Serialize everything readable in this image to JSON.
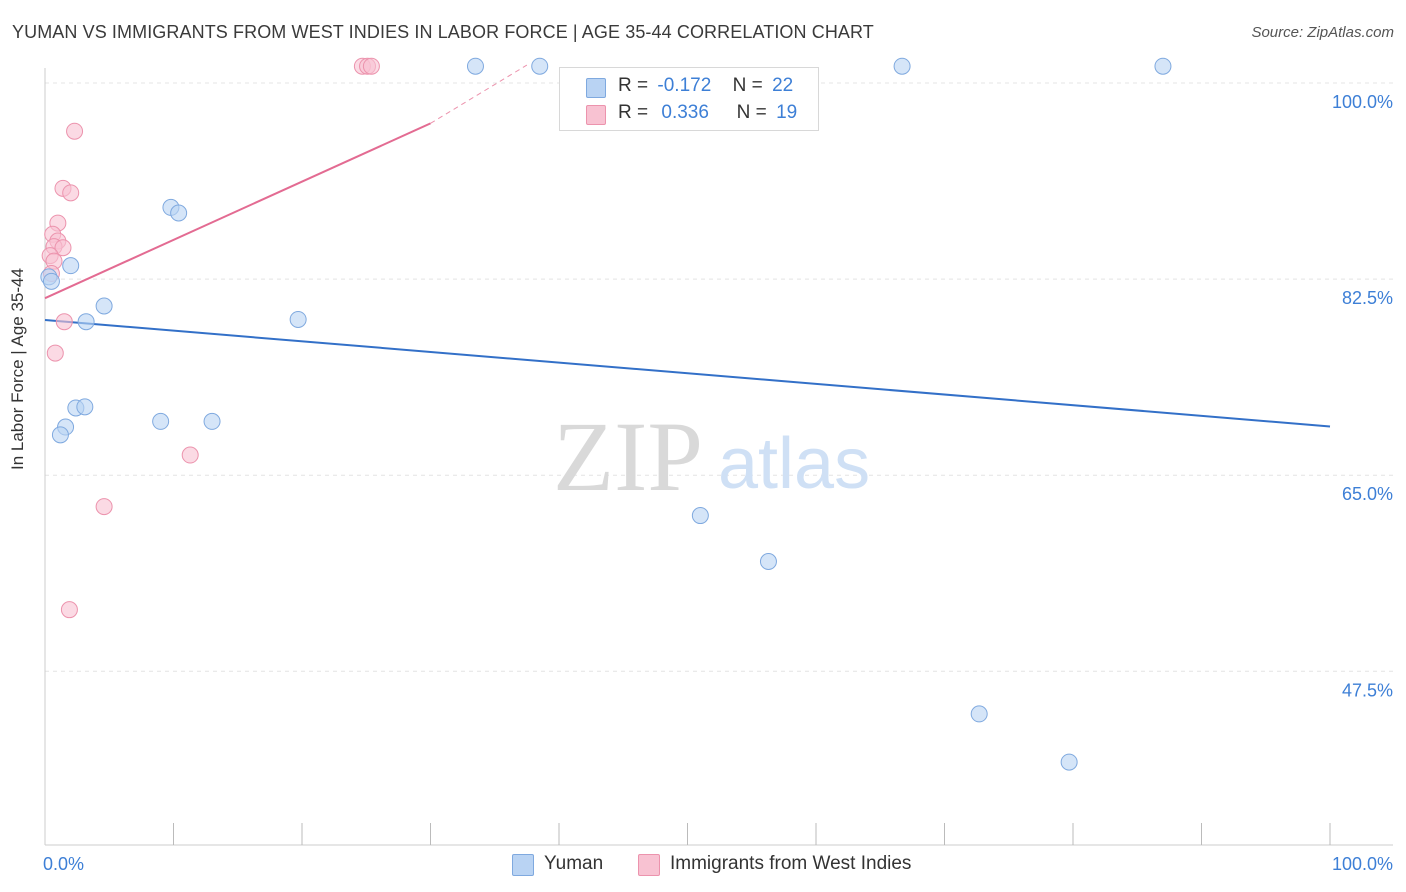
{
  "title": "YUMAN VS IMMIGRANTS FROM WEST INDIES IN LABOR FORCE | AGE 35-44 CORRELATION CHART",
  "source": "Source: ZipAtlas.com",
  "watermark": {
    "zip": "ZIP",
    "atlas": "atlas"
  },
  "legend": {
    "r_label": "R =",
    "n_label": "N =",
    "yuman": {
      "r": "-0.172",
      "n": "22"
    },
    "west_indies": {
      "r": "0.336",
      "n": "19"
    }
  },
  "colors": {
    "yuman_fill": "#b9d3f3",
    "yuman_stroke": "#7fa9df",
    "yuman_line": "#3370c8",
    "wi_fill": "#f8c2d2",
    "wi_stroke": "#ec93ad",
    "wi_line": "#e36b92",
    "axis_text": "#3d7fd6",
    "grid": "#e4e4e4"
  },
  "chart_data": {
    "type": "scatter",
    "title": "YUMAN VS IMMIGRANTS FROM WEST INDIES IN LABOR FORCE | AGE 35-44 CORRELATION CHART",
    "xlabel": "",
    "ylabel": "In Labor Force | Age 35-44",
    "xlim": [
      0,
      100
    ],
    "ylim": [
      32,
      102.5
    ],
    "x_tick_labels": [
      "0.0%",
      "100.0%"
    ],
    "y_ticks": [
      {
        "value": 100.0,
        "label": "100.0%"
      },
      {
        "value": 82.5,
        "label": "82.5%"
      },
      {
        "value": 65.0,
        "label": "65.0%"
      },
      {
        "value": 47.5,
        "label": "47.5%"
      }
    ],
    "series": [
      {
        "name": "Yuman",
        "points": [
          {
            "x": 0.3,
            "y": 82.7
          },
          {
            "x": 0.5,
            "y": 82.3
          },
          {
            "x": 2.0,
            "y": 83.7
          },
          {
            "x": 4.6,
            "y": 80.1
          },
          {
            "x": 3.2,
            "y": 78.7
          },
          {
            "x": 2.4,
            "y": 71.0
          },
          {
            "x": 3.1,
            "y": 71.1
          },
          {
            "x": 1.6,
            "y": 69.3
          },
          {
            "x": 1.2,
            "y": 68.6
          },
          {
            "x": 9.8,
            "y": 88.9
          },
          {
            "x": 10.4,
            "y": 88.4
          },
          {
            "x": 9.0,
            "y": 69.8
          },
          {
            "x": 13.0,
            "y": 69.8
          },
          {
            "x": 19.7,
            "y": 78.9
          },
          {
            "x": 33.5,
            "y": 101.5
          },
          {
            "x": 38.5,
            "y": 101.5
          },
          {
            "x": 66.7,
            "y": 101.5
          },
          {
            "x": 87.0,
            "y": 101.5
          },
          {
            "x": 51.0,
            "y": 61.4
          },
          {
            "x": 56.3,
            "y": 57.3
          },
          {
            "x": 72.7,
            "y": 43.7
          },
          {
            "x": 79.7,
            "y": 39.4
          }
        ],
        "trend": {
          "x": [
            0,
            100
          ],
          "y": [
            78.85,
            69.35
          ]
        }
      },
      {
        "name": "Immigrants from West Indies",
        "points": [
          {
            "x": 2.3,
            "y": 95.7
          },
          {
            "x": 1.4,
            "y": 90.6
          },
          {
            "x": 2.0,
            "y": 90.2
          },
          {
            "x": 1.0,
            "y": 87.5
          },
          {
            "x": 0.6,
            "y": 86.5
          },
          {
            "x": 1.0,
            "y": 85.9
          },
          {
            "x": 0.7,
            "y": 85.4
          },
          {
            "x": 1.4,
            "y": 85.3
          },
          {
            "x": 0.4,
            "y": 84.6
          },
          {
            "x": 0.7,
            "y": 84.1
          },
          {
            "x": 0.5,
            "y": 83.0
          },
          {
            "x": 1.5,
            "y": 78.7
          },
          {
            "x": 0.8,
            "y": 75.9
          },
          {
            "x": 11.3,
            "y": 66.8
          },
          {
            "x": 4.6,
            "y": 62.2
          },
          {
            "x": 1.9,
            "y": 53.0
          },
          {
            "x": 24.7,
            "y": 101.5
          },
          {
            "x": 25.1,
            "y": 101.5
          },
          {
            "x": 25.4,
            "y": 101.5
          }
        ],
        "trend": {
          "x": [
            0,
            30
          ],
          "y": [
            80.8,
            96.4
          ]
        },
        "trend_extension": {
          "x": [
            30,
            37.5
          ],
          "y": [
            96.4,
            101.6
          ]
        }
      }
    ]
  }
}
